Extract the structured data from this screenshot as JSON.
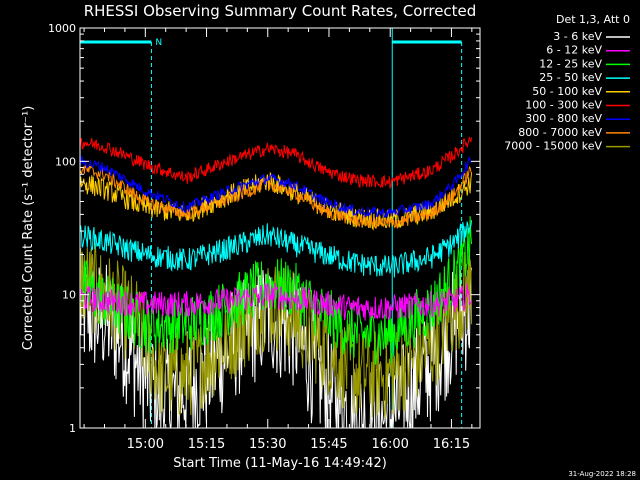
{
  "chart_data": {
    "type": "line",
    "title": "RHESSI Observing Summary Count Rates, Corrected",
    "xlabel": "Start Time (11-May-16 14:49:42)",
    "ylabel": "Corrected Count Rate (s⁻¹ detector⁻¹)",
    "y_scale": "log",
    "ylim": [
      1,
      1000
    ],
    "xlim_minutes": [
      -6,
      92
    ],
    "x_ticks": [
      {
        "label": "15:00",
        "minute": 10
      },
      {
        "label": "15:15",
        "minute": 25
      },
      {
        "label": "15:30",
        "minute": 40
      },
      {
        "label": "15:45",
        "minute": 55
      },
      {
        "label": "16:00",
        "minute": 70
      },
      {
        "label": "16:15",
        "minute": 85
      }
    ],
    "y_ticks": [
      {
        "label": "1",
        "value": 1
      },
      {
        "label": "10",
        "value": 10
      },
      {
        "label": "100",
        "value": 100
      },
      {
        "label": "1000",
        "value": 1000
      }
    ],
    "legend_title": "Det 1,3, Att 0",
    "legend_placement": "top-right outside",
    "night_bars": [
      {
        "start_minute": -6,
        "end_minute": 11.5,
        "label": "N"
      },
      {
        "start_minute": 70.5,
        "end_minute": 87.5,
        "label": ""
      }
    ],
    "series": [
      {
        "name": "3 - 6 keV",
        "color": "#ffffff",
        "values_at_minute": [
          [
            -6,
            7.5
          ],
          [
            0,
            6.5
          ],
          [
            4,
            5
          ],
          [
            8,
            3
          ],
          [
            14,
            1.6
          ],
          [
            18,
            1.8
          ],
          [
            25,
            2.5
          ],
          [
            32,
            4.5
          ],
          [
            40,
            7
          ],
          [
            46,
            5.5
          ],
          [
            54,
            2
          ],
          [
            62,
            1.1
          ],
          [
            70,
            1.2
          ],
          [
            80,
            3
          ],
          [
            86,
            6
          ],
          [
            90,
            8
          ]
        ]
      },
      {
        "name": "6 - 12 keV",
        "color": "#ff00ff",
        "values_at_minute": [
          [
            -6,
            9.5
          ],
          [
            0,
            9
          ],
          [
            10,
            8.5
          ],
          [
            20,
            8.5
          ],
          [
            30,
            9
          ],
          [
            40,
            10
          ],
          [
            50,
            9
          ],
          [
            60,
            8
          ],
          [
            70,
            8
          ],
          [
            80,
            8.5
          ],
          [
            86,
            9
          ],
          [
            90,
            10
          ]
        ]
      },
      {
        "name": "12 - 25 keV",
        "color": "#00ff00",
        "values_at_minute": [
          [
            -6,
            12
          ],
          [
            0,
            9
          ],
          [
            10,
            6
          ],
          [
            20,
            6
          ],
          [
            30,
            8
          ],
          [
            40,
            12
          ],
          [
            46,
            11
          ],
          [
            54,
            7
          ],
          [
            62,
            5
          ],
          [
            70,
            5
          ],
          [
            80,
            8
          ],
          [
            86,
            14
          ],
          [
            90,
            25
          ]
        ]
      },
      {
        "name": "25 - 50 keV",
        "color": "#00ffff",
        "values_at_minute": [
          [
            -6,
            28
          ],
          [
            0,
            25
          ],
          [
            10,
            20
          ],
          [
            20,
            18
          ],
          [
            30,
            22
          ],
          [
            40,
            28
          ],
          [
            46,
            24
          ],
          [
            54,
            20
          ],
          [
            62,
            17
          ],
          [
            70,
            16
          ],
          [
            80,
            19
          ],
          [
            86,
            25
          ],
          [
            90,
            35
          ]
        ]
      },
      {
        "name": "50 - 100 keV",
        "color": "#ffcc00",
        "values_at_minute": [
          [
            -6,
            70
          ],
          [
            0,
            62
          ],
          [
            10,
            45
          ],
          [
            20,
            40
          ],
          [
            30,
            55
          ],
          [
            40,
            72
          ],
          [
            46,
            60
          ],
          [
            54,
            45
          ],
          [
            62,
            38
          ],
          [
            70,
            36
          ],
          [
            80,
            42
          ],
          [
            86,
            55
          ],
          [
            90,
            70
          ]
        ]
      },
      {
        "name": "100 - 300 keV",
        "color": "#ff0000",
        "values_at_minute": [
          [
            -6,
            140
          ],
          [
            0,
            130
          ],
          [
            10,
            95
          ],
          [
            20,
            75
          ],
          [
            30,
            100
          ],
          [
            40,
            125
          ],
          [
            46,
            115
          ],
          [
            54,
            85
          ],
          [
            62,
            72
          ],
          [
            70,
            70
          ],
          [
            80,
            85
          ],
          [
            86,
            115
          ],
          [
            90,
            150
          ]
        ]
      },
      {
        "name": "300 - 800 keV",
        "color": "#0000ff",
        "values_at_minute": [
          [
            -6,
            100
          ],
          [
            0,
            90
          ],
          [
            10,
            60
          ],
          [
            20,
            45
          ],
          [
            30,
            60
          ],
          [
            40,
            75
          ],
          [
            46,
            68
          ],
          [
            54,
            50
          ],
          [
            62,
            42
          ],
          [
            70,
            41
          ],
          [
            80,
            48
          ],
          [
            86,
            70
          ],
          [
            90,
            105
          ]
        ]
      },
      {
        "name": "800 - 7000 keV",
        "color": "#ff8800",
        "values_at_minute": [
          [
            -6,
            88
          ],
          [
            0,
            80
          ],
          [
            10,
            50
          ],
          [
            20,
            40
          ],
          [
            30,
            52
          ],
          [
            40,
            68
          ],
          [
            46,
            60
          ],
          [
            54,
            42
          ],
          [
            62,
            36
          ],
          [
            70,
            34
          ],
          [
            80,
            40
          ],
          [
            86,
            58
          ],
          [
            90,
            88
          ]
        ]
      },
      {
        "name": "7000 - 15000 keV",
        "color": "#999900",
        "values_at_minute": [
          [
            -6,
            13
          ],
          [
            0,
            10
          ],
          [
            8,
            6
          ],
          [
            14,
            2.5
          ],
          [
            20,
            2.5
          ],
          [
            28,
            4
          ],
          [
            40,
            9
          ],
          [
            46,
            7
          ],
          [
            54,
            4
          ],
          [
            62,
            2.5
          ],
          [
            70,
            2.5
          ],
          [
            80,
            4
          ],
          [
            86,
            8
          ],
          [
            90,
            12
          ]
        ]
      }
    ],
    "footer_date": "31-Aug-2022 18:28"
  }
}
